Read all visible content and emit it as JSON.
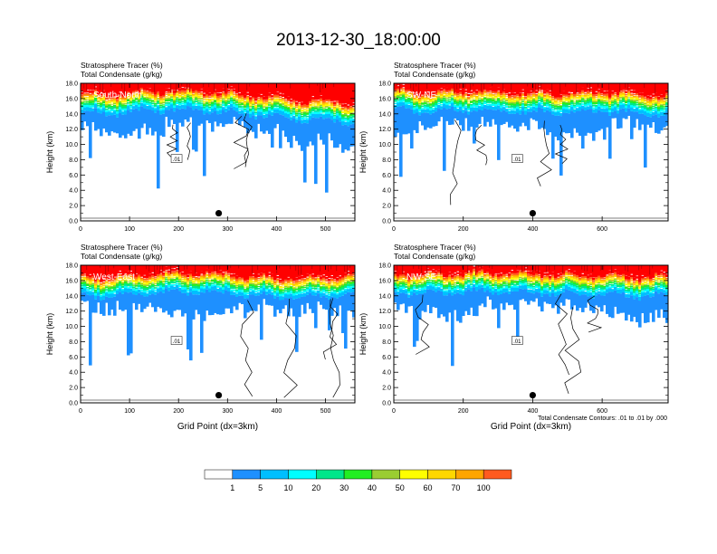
{
  "title": "2013-12-30_18:00:00",
  "colors": {
    "levels": [
      "#ffffff",
      "#1e90ff",
      "#00bfff",
      "#00ffff",
      "#00e68a",
      "#22ee22",
      "#9acd32",
      "#ffff00",
      "#ffd700",
      "#ffa500",
      "#ff5a1f",
      "#ff0000"
    ]
  },
  "colorbar": {
    "labels": [
      "1",
      "5",
      "10",
      "20",
      "30",
      "40",
      "50",
      "60",
      "70",
      "100"
    ]
  },
  "footnote": "Total Condensate Contours: .01 to .01 by .000",
  "chart_data": [
    {
      "type": "heatmap",
      "label": "South-North",
      "header1": "Stratosphere Tracer   (%)",
      "header2": "Total Condensate   (g/kg)",
      "ylabel": "Height (km)",
      "xlabel": "",
      "xlim": [
        0,
        560
      ],
      "ylim": [
        0,
        18
      ],
      "xticks": [
        "0",
        "100",
        "200",
        "300",
        "400",
        "500"
      ],
      "xtick_values": [
        0,
        100,
        200,
        300,
        400,
        500
      ],
      "yticks": [
        "0.0",
        "2.0",
        "4.0",
        "6.0",
        "8.0",
        "10.0",
        "12.0",
        "14.0",
        "16.0",
        "18.0"
      ],
      "contour_label": ".01",
      "marker": {
        "x": 282,
        "y": 1.0
      },
      "boundary": [
        {
          "x": 0,
          "y": 14.3
        },
        {
          "x": 60,
          "y": 14.0
        },
        {
          "x": 120,
          "y": 14.4
        },
        {
          "x": 180,
          "y": 14.6
        },
        {
          "x": 240,
          "y": 14.5
        },
        {
          "x": 300,
          "y": 14.2
        },
        {
          "x": 360,
          "y": 13.9
        },
        {
          "x": 420,
          "y": 13.4
        },
        {
          "x": 480,
          "y": 13.2
        },
        {
          "x": 560,
          "y": 13.0
        }
      ]
    },
    {
      "type": "heatmap",
      "label": "SW-NE",
      "header1": "Stratosphere Tracer   (%)",
      "header2": "Total Condensate   (g/kg)",
      "ylabel": "Height (km)",
      "xlabel": "",
      "xlim": [
        0,
        790
      ],
      "ylim": [
        0,
        18
      ],
      "xticks": [
        "0",
        "200",
        "400",
        "600"
      ],
      "xtick_values": [
        0,
        200,
        400,
        600
      ],
      "yticks": [
        "0.0",
        "2.0",
        "4.0",
        "6.0",
        "8.0",
        "10.0",
        "12.0",
        "14.0",
        "16.0",
        "18.0"
      ],
      "contour_label": ".01",
      "marker": {
        "x": 400,
        "y": 1.0
      },
      "boundary": [
        {
          "x": 0,
          "y": 14.6
        },
        {
          "x": 100,
          "y": 14.3
        },
        {
          "x": 200,
          "y": 14.5
        },
        {
          "x": 300,
          "y": 14.4
        },
        {
          "x": 400,
          "y": 14.2
        },
        {
          "x": 500,
          "y": 14.3
        },
        {
          "x": 600,
          "y": 14.4
        },
        {
          "x": 700,
          "y": 14.1
        },
        {
          "x": 790,
          "y": 13.9
        }
      ]
    },
    {
      "type": "heatmap",
      "label": "West-East",
      "header1": "Stratosphere Tracer   (%)",
      "header2": "Total Condensate   (g/kg)",
      "ylabel": "Height (km)",
      "xlabel": "Grid Point (dx=3km)",
      "xlim": [
        0,
        560
      ],
      "ylim": [
        0,
        18
      ],
      "xticks": [
        "0",
        "100",
        "200",
        "300",
        "400",
        "500"
      ],
      "xtick_values": [
        0,
        100,
        200,
        300,
        400,
        500
      ],
      "yticks": [
        "0.0",
        "2.0",
        "4.0",
        "6.0",
        "8.0",
        "10.0",
        "12.0",
        "14.0",
        "16.0",
        "18.0"
      ],
      "contour_label": ".01",
      "marker": {
        "x": 282,
        "y": 1.0
      },
      "boundary": [
        {
          "x": 0,
          "y": 14.2
        },
        {
          "x": 60,
          "y": 13.9
        },
        {
          "x": 120,
          "y": 14.2
        },
        {
          "x": 180,
          "y": 14.5
        },
        {
          "x": 240,
          "y": 14.6
        },
        {
          "x": 300,
          "y": 14.3
        },
        {
          "x": 360,
          "y": 14.0
        },
        {
          "x": 420,
          "y": 13.8
        },
        {
          "x": 480,
          "y": 14.0
        },
        {
          "x": 560,
          "y": 14.1
        }
      ]
    },
    {
      "type": "heatmap",
      "label": "NW-SE",
      "header1": "Stratosphere Tracer   (%)",
      "header2": "Total Condensate   (g/kg)",
      "ylabel": "Height (km)",
      "xlabel": "Grid Point (dx=3km)",
      "xlim": [
        0,
        790
      ],
      "ylim": [
        0,
        18
      ],
      "xticks": [
        "0",
        "200",
        "400",
        "600"
      ],
      "xtick_values": [
        0,
        200,
        400,
        600
      ],
      "yticks": [
        "0.0",
        "2.0",
        "4.0",
        "6.0",
        "8.0",
        "10.0",
        "12.0",
        "14.0",
        "16.0",
        "18.0"
      ],
      "contour_label": ".01",
      "marker": {
        "x": 400,
        "y": 1.0
      },
      "boundary": [
        {
          "x": 0,
          "y": 14.5
        },
        {
          "x": 100,
          "y": 14.2
        },
        {
          "x": 200,
          "y": 14.5
        },
        {
          "x": 300,
          "y": 14.6
        },
        {
          "x": 400,
          "y": 14.4
        },
        {
          "x": 500,
          "y": 14.3
        },
        {
          "x": 600,
          "y": 14.2
        },
        {
          "x": 700,
          "y": 14.0
        },
        {
          "x": 790,
          "y": 14.1
        }
      ]
    }
  ]
}
